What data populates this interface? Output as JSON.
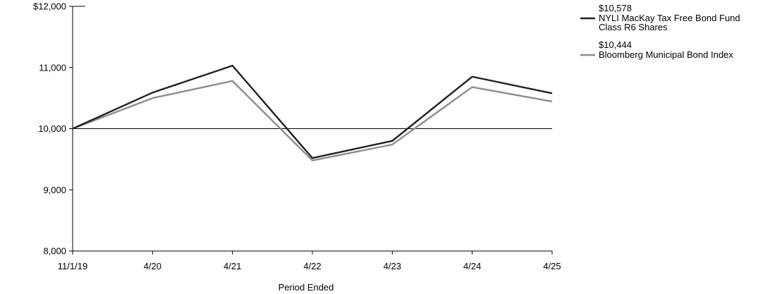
{
  "chart_data": {
    "type": "line",
    "x": [
      "11/1/19",
      "4/20",
      "4/21",
      "4/22",
      "4/23",
      "4/24",
      "4/25"
    ],
    "xlabel": "Period Ended",
    "ylabel": "",
    "ylim": [
      8000,
      12000
    ],
    "yticks": [
      8000,
      9000,
      10000,
      11000,
      12000
    ],
    "ytick_labels": [
      "8,000",
      "9,000",
      "10,000",
      "11,000",
      "$12,000"
    ],
    "reference_line": 10000,
    "legend_position": "top-right",
    "series": [
      {
        "name": "NYLI MacKay Tax Free Bond Fund Class R6 Shares",
        "name_lines": [
          "NYLI MacKay Tax Free Bond Fund",
          "Class R6 Shares"
        ],
        "end_value_label": "$10,578",
        "color": "#231f20",
        "values": [
          10000,
          10590,
          11030,
          9520,
          9800,
          10850,
          10578
        ]
      },
      {
        "name": "Bloomberg  Municipal Bond Index",
        "name_lines": [
          "Bloomberg  Municipal Bond Index"
        ],
        "end_value_label": "$10,444",
        "color": "#8c8c8c",
        "values": [
          10000,
          10500,
          10780,
          9480,
          9740,
          10680,
          10444
        ]
      }
    ]
  }
}
